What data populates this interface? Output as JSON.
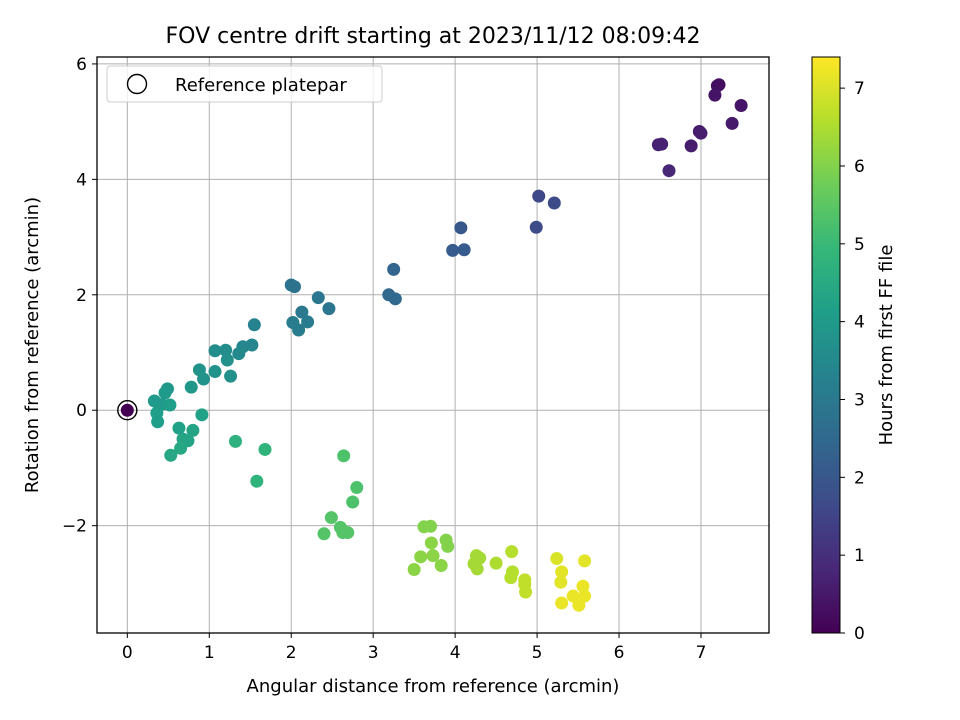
{
  "chart_data": {
    "type": "scatter",
    "title": "FOV centre drift starting at 2023/11/12 08:09:42",
    "xlabel": "Angular distance from reference (arcmin)",
    "ylabel": "Rotation from reference (arcmin)",
    "xlim": [
      -0.37,
      7.83
    ],
    "ylim": [
      -3.86,
      6.12
    ],
    "xticks": [
      0,
      1,
      2,
      3,
      4,
      5,
      6,
      7
    ],
    "yticks": [
      -2,
      0,
      2,
      4,
      6
    ],
    "ytick_labels": [
      "−2",
      "0",
      "2",
      "4",
      "6"
    ],
    "grid": true,
    "legend": {
      "placement": "top-left",
      "entries": [
        "Reference platepar"
      ]
    },
    "reference_point": {
      "x": 0,
      "y": 0,
      "hours": 0
    },
    "colorbar": {
      "label": "Hours from first FF file",
      "range": [
        0,
        7.4
      ],
      "ticks": [
        0,
        1,
        2,
        3,
        4,
        5,
        6,
        7
      ],
      "colormap": "viridis"
    },
    "points": [
      {
        "x": 7.2,
        "y": 5.62,
        "h": 0.3
      },
      {
        "x": 7.22,
        "y": 5.64,
        "h": 0.3
      },
      {
        "x": 7.17,
        "y": 5.46,
        "h": 0.4
      },
      {
        "x": 7.49,
        "y": 5.28,
        "h": 0.4
      },
      {
        "x": 7.38,
        "y": 4.97,
        "h": 0.5
      },
      {
        "x": 6.98,
        "y": 4.83,
        "h": 0.5
      },
      {
        "x": 7.0,
        "y": 4.8,
        "h": 0.6
      },
      {
        "x": 6.88,
        "y": 4.58,
        "h": 0.6
      },
      {
        "x": 6.52,
        "y": 4.61,
        "h": 0.7
      },
      {
        "x": 6.48,
        "y": 4.6,
        "h": 0.7
      },
      {
        "x": 6.61,
        "y": 4.15,
        "h": 0.8
      },
      {
        "x": 5.02,
        "y": 3.71,
        "h": 1.6
      },
      {
        "x": 5.21,
        "y": 3.59,
        "h": 1.7
      },
      {
        "x": 4.99,
        "y": 3.17,
        "h": 1.7
      },
      {
        "x": 4.07,
        "y": 3.16,
        "h": 2.0
      },
      {
        "x": 3.97,
        "y": 2.77,
        "h": 2.1
      },
      {
        "x": 4.11,
        "y": 2.78,
        "h": 2.1
      },
      {
        "x": 3.25,
        "y": 2.44,
        "h": 2.4
      },
      {
        "x": 3.19,
        "y": 2.0,
        "h": 2.5
      },
      {
        "x": 3.27,
        "y": 1.93,
        "h": 2.5
      },
      {
        "x": 2.0,
        "y": 2.17,
        "h": 2.8
      },
      {
        "x": 2.04,
        "y": 2.14,
        "h": 2.8
      },
      {
        "x": 2.33,
        "y": 1.95,
        "h": 2.9
      },
      {
        "x": 2.46,
        "y": 1.76,
        "h": 2.9
      },
      {
        "x": 2.13,
        "y": 1.7,
        "h": 3.0
      },
      {
        "x": 2.02,
        "y": 1.52,
        "h": 3.1
      },
      {
        "x": 2.2,
        "y": 1.53,
        "h": 3.1
      },
      {
        "x": 2.09,
        "y": 1.39,
        "h": 3.1
      },
      {
        "x": 1.55,
        "y": 1.48,
        "h": 3.3
      },
      {
        "x": 1.52,
        "y": 1.13,
        "h": 3.4
      },
      {
        "x": 1.41,
        "y": 1.1,
        "h": 3.4
      },
      {
        "x": 1.36,
        "y": 0.98,
        "h": 3.5
      },
      {
        "x": 1.07,
        "y": 1.03,
        "h": 3.6
      },
      {
        "x": 1.2,
        "y": 1.04,
        "h": 3.6
      },
      {
        "x": 1.22,
        "y": 0.87,
        "h": 3.7
      },
      {
        "x": 1.26,
        "y": 0.59,
        "h": 3.7
      },
      {
        "x": 0.88,
        "y": 0.7,
        "h": 3.8
      },
      {
        "x": 1.07,
        "y": 0.67,
        "h": 3.8
      },
      {
        "x": 0.93,
        "y": 0.54,
        "h": 3.8
      },
      {
        "x": 0.78,
        "y": 0.4,
        "h": 3.9
      },
      {
        "x": 0.49,
        "y": 0.37,
        "h": 3.9
      },
      {
        "x": 0.46,
        "y": 0.3,
        "h": 4.0
      },
      {
        "x": 0.33,
        "y": 0.16,
        "h": 4.0
      },
      {
        "x": 0.42,
        "y": 0.1,
        "h": 4.0
      },
      {
        "x": 0.52,
        "y": 0.09,
        "h": 4.1
      },
      {
        "x": 0.36,
        "y": -0.05,
        "h": 4.1
      },
      {
        "x": 0.37,
        "y": -0.2,
        "h": 4.1
      },
      {
        "x": 0.91,
        "y": -0.08,
        "h": 4.2
      },
      {
        "x": 0.63,
        "y": -0.31,
        "h": 4.2
      },
      {
        "x": 0.8,
        "y": -0.35,
        "h": 4.3
      },
      {
        "x": 0.68,
        "y": -0.5,
        "h": 4.3
      },
      {
        "x": 0.74,
        "y": -0.53,
        "h": 4.3
      },
      {
        "x": 0.65,
        "y": -0.66,
        "h": 4.4
      },
      {
        "x": 0.53,
        "y": -0.78,
        "h": 4.4
      },
      {
        "x": 1.32,
        "y": -0.54,
        "h": 4.7
      },
      {
        "x": 1.68,
        "y": -0.68,
        "h": 4.8
      },
      {
        "x": 1.58,
        "y": -1.23,
        "h": 4.8
      },
      {
        "x": 2.64,
        "y": -0.79,
        "h": 5.3
      },
      {
        "x": 2.8,
        "y": -1.34,
        "h": 5.3
      },
      {
        "x": 2.75,
        "y": -1.59,
        "h": 5.3
      },
      {
        "x": 2.49,
        "y": -1.86,
        "h": 5.4
      },
      {
        "x": 2.6,
        "y": -2.03,
        "h": 5.4
      },
      {
        "x": 2.63,
        "y": -2.12,
        "h": 5.4
      },
      {
        "x": 2.69,
        "y": -2.12,
        "h": 5.4
      },
      {
        "x": 2.4,
        "y": -2.14,
        "h": 5.4
      },
      {
        "x": 3.62,
        "y": -2.02,
        "h": 6.0
      },
      {
        "x": 3.7,
        "y": -2.01,
        "h": 6.0
      },
      {
        "x": 3.89,
        "y": -2.25,
        "h": 6.0
      },
      {
        "x": 3.91,
        "y": -2.36,
        "h": 6.0
      },
      {
        "x": 3.71,
        "y": -2.3,
        "h": 6.1
      },
      {
        "x": 3.58,
        "y": -2.54,
        "h": 6.1
      },
      {
        "x": 3.73,
        "y": -2.52,
        "h": 6.1
      },
      {
        "x": 3.83,
        "y": -2.69,
        "h": 6.1
      },
      {
        "x": 3.5,
        "y": -2.76,
        "h": 6.1
      },
      {
        "x": 4.26,
        "y": -2.52,
        "h": 6.4
      },
      {
        "x": 4.3,
        "y": -2.56,
        "h": 6.4
      },
      {
        "x": 4.23,
        "y": -2.66,
        "h": 6.4
      },
      {
        "x": 4.27,
        "y": -2.75,
        "h": 6.4
      },
      {
        "x": 4.5,
        "y": -2.65,
        "h": 6.5
      },
      {
        "x": 4.69,
        "y": -2.45,
        "h": 6.6
      },
      {
        "x": 4.7,
        "y": -2.8,
        "h": 6.6
      },
      {
        "x": 4.68,
        "y": -2.9,
        "h": 6.6
      },
      {
        "x": 4.85,
        "y": -2.94,
        "h": 6.7
      },
      {
        "x": 4.85,
        "y": -3.02,
        "h": 6.7
      },
      {
        "x": 4.86,
        "y": -3.15,
        "h": 6.7
      },
      {
        "x": 5.24,
        "y": -2.57,
        "h": 7.0
      },
      {
        "x": 5.58,
        "y": -2.61,
        "h": 7.1
      },
      {
        "x": 5.3,
        "y": -2.8,
        "h": 7.1
      },
      {
        "x": 5.29,
        "y": -2.98,
        "h": 7.1
      },
      {
        "x": 5.56,
        "y": -3.05,
        "h": 7.2
      },
      {
        "x": 5.44,
        "y": -3.22,
        "h": 7.2
      },
      {
        "x": 5.58,
        "y": -3.22,
        "h": 7.2
      },
      {
        "x": 5.3,
        "y": -3.34,
        "h": 7.2
      },
      {
        "x": 5.51,
        "y": -3.38,
        "h": 7.2
      }
    ]
  }
}
